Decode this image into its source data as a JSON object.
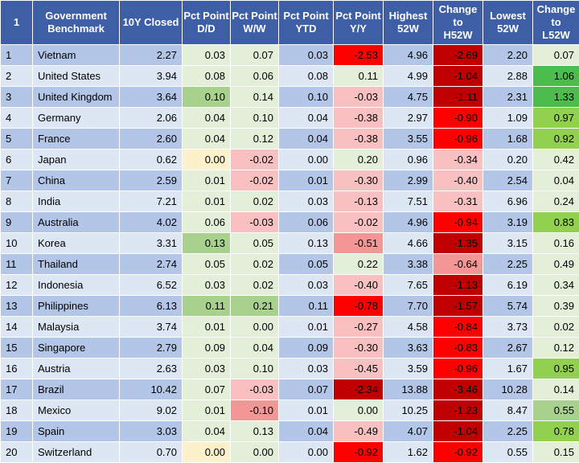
{
  "chart_data": {
    "type": "table",
    "columns": [
      "1",
      "Government Benchmark",
      "10Y Closed",
      "Pct Point D/D",
      "Pct Point W/W",
      "Pct Point YTD",
      "Pct Point Y/Y",
      "Highest 52W",
      "Change to H52W",
      "Lowest 52W",
      "Change to L52W"
    ],
    "rows": [
      [
        "1",
        "Vietnam",
        "2.27",
        "0.03",
        "0.07",
        "0.03",
        "-2.53",
        "4.96",
        "-2.69",
        "2.20",
        "0.07"
      ],
      [
        "2",
        "United States",
        "3.94",
        "0.08",
        "0.06",
        "0.08",
        "0.11",
        "4.99",
        "-1.04",
        "2.88",
        "1.06"
      ],
      [
        "3",
        "United Kingdom",
        "3.64",
        "0.10",
        "0.14",
        "0.10",
        "-0.03",
        "4.75",
        "-1.11",
        "2.31",
        "1.33"
      ],
      [
        "4",
        "Germany",
        "2.06",
        "0.04",
        "0.10",
        "0.04",
        "-0.38",
        "2.97",
        "-0.90",
        "1.09",
        "0.97"
      ],
      [
        "5",
        "France",
        "2.60",
        "0.04",
        "0.12",
        "0.04",
        "-0.38",
        "3.55",
        "-0.96",
        "1.68",
        "0.92"
      ],
      [
        "6",
        "Japan",
        "0.62",
        "0.00",
        "-0.02",
        "0.00",
        "0.20",
        "0.96",
        "-0.34",
        "0.20",
        "0.42"
      ],
      [
        "7",
        "China",
        "2.59",
        "0.01",
        "-0.02",
        "0.01",
        "-0.30",
        "2.99",
        "-0.40",
        "2.54",
        "0.04"
      ],
      [
        "8",
        "India",
        "7.21",
        "0.01",
        "0.02",
        "0.03",
        "-0.13",
        "7.51",
        "-0.31",
        "6.96",
        "0.24"
      ],
      [
        "9",
        "Australia",
        "4.02",
        "0.06",
        "-0.03",
        "0.06",
        "-0.02",
        "4.96",
        "-0.94",
        "3.19",
        "0.83"
      ],
      [
        "10",
        "Korea",
        "3.31",
        "0.13",
        "0.05",
        "0.13",
        "-0.51",
        "4.66",
        "-1.35",
        "3.15",
        "0.16"
      ],
      [
        "11",
        "Thailand",
        "2.74",
        "0.05",
        "0.02",
        "0.05",
        "0.22",
        "3.38",
        "-0.64",
        "2.25",
        "0.49"
      ],
      [
        "12",
        "Indonesia",
        "6.52",
        "0.03",
        "0.02",
        "0.03",
        "-0.40",
        "7.65",
        "-1.13",
        "6.19",
        "0.34"
      ],
      [
        "13",
        "Philippines",
        "6.13",
        "0.11",
        "0.21",
        "0.11",
        "-0.78",
        "7.70",
        "-1.57",
        "5.74",
        "0.39"
      ],
      [
        "14",
        "Malaysia",
        "3.74",
        "0.01",
        "0.00",
        "0.01",
        "-0.27",
        "4.58",
        "-0.84",
        "3.73",
        "0.02"
      ],
      [
        "15",
        "Singapore",
        "2.79",
        "0.09",
        "0.04",
        "0.09",
        "-0.30",
        "3.63",
        "-0.83",
        "2.67",
        "0.12"
      ],
      [
        "16",
        "Austria",
        "2.63",
        "0.03",
        "0.10",
        "0.03",
        "-0.45",
        "3.59",
        "-0.96",
        "1.67",
        "0.95"
      ],
      [
        "17",
        "Brazil",
        "10.42",
        "0.07",
        "-0.03",
        "0.07",
        "-2.34",
        "13.88",
        "-3.46",
        "10.28",
        "0.14"
      ],
      [
        "18",
        "Mexico",
        "9.02",
        "0.01",
        "-0.10",
        "0.01",
        "0.00",
        "10.25",
        "-1.23",
        "8.47",
        "0.55"
      ],
      [
        "19",
        "Spain",
        "3.03",
        "0.04",
        "0.13",
        "0.04",
        "-0.49",
        "4.07",
        "-1.04",
        "2.25",
        "0.78"
      ],
      [
        "20",
        "Switzerland",
        "0.70",
        "0.00",
        "0.00",
        "0.00",
        "-0.92",
        "1.62",
        "-0.92",
        "0.55",
        "0.15"
      ]
    ],
    "cell_colors": {
      "d_d": [
        "w-plain",
        "w-plain",
        "w-green",
        "w-plain",
        "w-plain",
        "w-yellow",
        "w-plain",
        "w-plain",
        "w-plain",
        "w-green",
        "w-plain",
        "w-plain",
        "w-green",
        "w-plain",
        "w-plain",
        "w-plain",
        "w-plain",
        "w-plain",
        "w-plain",
        "w-yellow"
      ],
      "w_w": [
        "w-plain",
        "w-plain",
        "w-plain",
        "w-plain",
        "w-plain",
        "w-pink",
        "w-pink",
        "w-plain",
        "w-pink",
        "w-plain",
        "w-plain",
        "w-plain",
        "w-green",
        "w-plain",
        "w-plain",
        "w-plain",
        "w-pink",
        "w-salmon",
        "w-plain",
        "w-plain"
      ],
      "ytd": [
        "w-plain",
        "w-plain",
        "w-plain",
        "w-plain",
        "w-plain",
        "w-yellow",
        "w-plain",
        "w-plain",
        "w-plain",
        "w-plain",
        "w-plain",
        "w-plain",
        "w-plain",
        "w-plain",
        "w-plain",
        "w-plain",
        "w-plain",
        "w-plain",
        "w-plain",
        "w-yellow"
      ],
      "y_y": [
        "w-red",
        "w-plain",
        "w-pink",
        "w-pink",
        "w-pink",
        "w-plain",
        "w-pink",
        "w-pink",
        "w-pink",
        "w-salmon",
        "w-plain",
        "w-pink",
        "w-red",
        "w-pink",
        "w-pink",
        "w-pink",
        "w-darkred",
        "w-plain",
        "w-pink",
        "w-red"
      ],
      "h52": [
        "w-darkred",
        "w-darkred",
        "w-darkred",
        "w-red",
        "w-red",
        "w-pink",
        "w-pink",
        "w-pink",
        "w-red",
        "w-darkred",
        "w-salmon",
        "w-darkred",
        "w-darkred",
        "w-red",
        "w-red",
        "w-red",
        "w-darkred",
        "w-darkred",
        "w-darkred",
        "w-red"
      ],
      "l52": [
        "w-plain",
        "w-bright",
        "w-bright",
        "w-lime",
        "w-lime",
        "w-plain",
        "w-plain",
        "w-plain",
        "w-lime",
        "w-plain",
        "w-plain",
        "w-plain",
        "w-plain",
        "w-plain",
        "w-plain",
        "w-lime",
        "w-plain",
        "w-green",
        "w-lime",
        "w-plain"
      ]
    }
  }
}
